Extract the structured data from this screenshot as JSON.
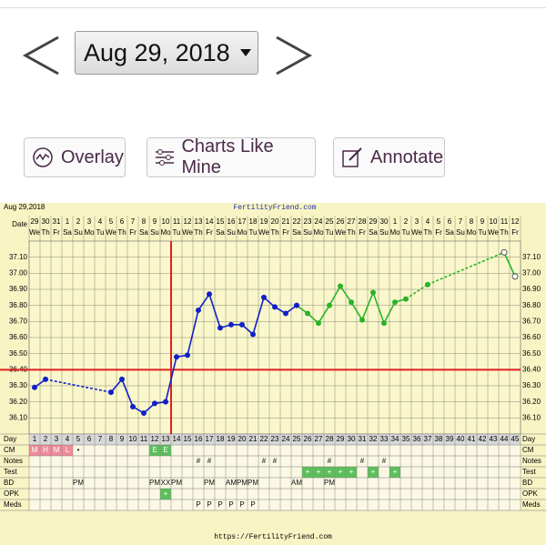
{
  "nav": {
    "date_selector": "Aug 29, 2018"
  },
  "buttons": [
    "Overlay",
    "Charts Like Mine",
    "Annotate"
  ],
  "chart_data": {
    "type": "line",
    "header_left": "Aug 29,2018",
    "title": "FertilityFriend.com",
    "footer": "https://FertilityFriend.com",
    "date_label": "Date",
    "day_label": "Day",
    "dates": [
      "29",
      "30",
      "31",
      "1",
      "2",
      "3",
      "4",
      "5",
      "6",
      "7",
      "8",
      "9",
      "10",
      "11",
      "12",
      "13",
      "14",
      "15",
      "16",
      "17",
      "18",
      "19",
      "20",
      "21",
      "22",
      "23",
      "24",
      "25",
      "26",
      "27",
      "28",
      "29",
      "30",
      "1",
      "2",
      "3",
      "4",
      "5",
      "6",
      "7",
      "8",
      "9",
      "10",
      "11",
      "12"
    ],
    "weekdays": [
      "We",
      "Th",
      "Fr",
      "Sa",
      "Su",
      "Mo",
      "Tu",
      "We",
      "Th",
      "Fr",
      "Sa",
      "Su",
      "Mo",
      "Tu",
      "We",
      "Th",
      "Fr",
      "Sa",
      "Su",
      "Mo",
      "Tu",
      "We",
      "Th",
      "Fr",
      "Sa",
      "Su",
      "Mo",
      "Tu",
      "We",
      "Th",
      "Fr",
      "Sa",
      "Su",
      "Mo",
      "Tu",
      "We",
      "Th",
      "Fr",
      "Sa",
      "Su",
      "Mo",
      "Tu",
      "We",
      "Th",
      "Fr"
    ],
    "categories": [
      1,
      2,
      3,
      4,
      5,
      6,
      7,
      8,
      9,
      10,
      11,
      12,
      13,
      14,
      15,
      16,
      17,
      18,
      19,
      20,
      21,
      22,
      23,
      24,
      25,
      26,
      27,
      28,
      29,
      30,
      31,
      32,
      33,
      34,
      35,
      36,
      37,
      38,
      39,
      40,
      41,
      42,
      43,
      44,
      45
    ],
    "series": [
      {
        "color": "#1020c8",
        "values": [
          36.29,
          36.34,
          null,
          null,
          null,
          null,
          null,
          36.26,
          36.34,
          36.17,
          36.13,
          36.19,
          36.2,
          36.48,
          36.49,
          36.77,
          36.87,
          36.66,
          36.68,
          36.68,
          36.62,
          36.85,
          36.79,
          36.75,
          36.8,
          null,
          null,
          null,
          null,
          null,
          null,
          null,
          null,
          null,
          null,
          null,
          null,
          null,
          null,
          null,
          null,
          null,
          null,
          null,
          null
        ]
      },
      {
        "color": "#28b428",
        "values": [
          null,
          null,
          null,
          null,
          null,
          null,
          null,
          null,
          null,
          null,
          null,
          null,
          null,
          null,
          null,
          null,
          null,
          null,
          null,
          null,
          null,
          null,
          null,
          null,
          null,
          36.75,
          36.69,
          36.8,
          36.92,
          36.82,
          36.71,
          36.88,
          36.69,
          36.82,
          36.84,
          null,
          36.93,
          null,
          null,
          null,
          null,
          null,
          null,
          null,
          null
        ]
      },
      {
        "color": "#28b428",
        "marker": "open",
        "values": [
          null,
          null,
          null,
          null,
          null,
          null,
          null,
          null,
          null,
          null,
          null,
          null,
          null,
          null,
          null,
          null,
          null,
          null,
          null,
          null,
          null,
          null,
          null,
          null,
          null,
          null,
          null,
          null,
          null,
          null,
          null,
          null,
          null,
          null,
          null,
          null,
          null,
          null,
          null,
          null,
          null,
          null,
          null,
          37.13,
          36.98
        ]
      }
    ],
    "ylim": [
      36.0,
      37.2
    ],
    "yticks": [
      {
        "value": 36.1,
        "label": "36.10"
      },
      {
        "value": 36.2,
        "label": "36.20"
      },
      {
        "value": 36.3,
        "label": "36.30"
      },
      {
        "value": 36.4,
        "label": "36.40"
      },
      {
        "value": 36.5,
        "label": "36.50"
      },
      {
        "value": 36.6,
        "label": "36.60"
      },
      {
        "value": 36.7,
        "label": "36.70"
      },
      {
        "value": 36.8,
        "label": "36.80"
      },
      {
        "value": 36.9,
        "label": "36.90"
      },
      {
        "value": 37.0,
        "label": "37.00"
      },
      {
        "value": 37.1,
        "label": "37.10"
      }
    ],
    "grid": true,
    "coverline": 36.4,
    "coverline_day": 13,
    "coverline_color": "#e02020",
    "rows": [
      {
        "label": "CM",
        "entries": {
          "1": "M",
          "2": "H",
          "3": "M",
          "4": "L",
          "5": "•",
          "12": "E",
          "13": "E"
        },
        "fills": {
          "1": "#f08a9a",
          "2": "#f08a9a",
          "3": "#f08a9a",
          "4": "#f08a9a",
          "12": "#5cbf5c",
          "13": "#5cbf5c"
        }
      },
      {
        "label": "Notes",
        "entries": {
          "16": "#",
          "17": "#",
          "22": "#",
          "23": "#",
          "28": "#",
          "31": "#",
          "33": "#"
        },
        "fills": {}
      },
      {
        "label": "Test",
        "entries": {
          "26": "+",
          "27": "+",
          "28": "+",
          "29": "+",
          "30": "+",
          "32": "+",
          "34": "+"
        },
        "fills": {
          "26": "#5cbf5c",
          "27": "#5cbf5c",
          "28": "#5cbf5c",
          "29": "#5cbf5c",
          "30": "#5cbf5c",
          "32": "#5cbf5c",
          "34": "#5cbf5c"
        }
      },
      {
        "label": "BD",
        "entries": {
          "5": "PM",
          "12": "PM",
          "13": "XX",
          "14": "PM",
          "17": "PM",
          "19": "AM",
          "20": "PM",
          "21": "PM",
          "25": "AM",
          "28": "PM"
        },
        "fills": {}
      },
      {
        "label": "OPK",
        "entries": {
          "13": "+"
        },
        "fills": {
          "13": "#5cbf5c"
        }
      },
      {
        "label": "Meds",
        "entries": {
          "16": "P",
          "17": "P",
          "18": "P",
          "19": "P",
          "20": "P",
          "21": "P"
        },
        "fills": {}
      }
    ]
  }
}
